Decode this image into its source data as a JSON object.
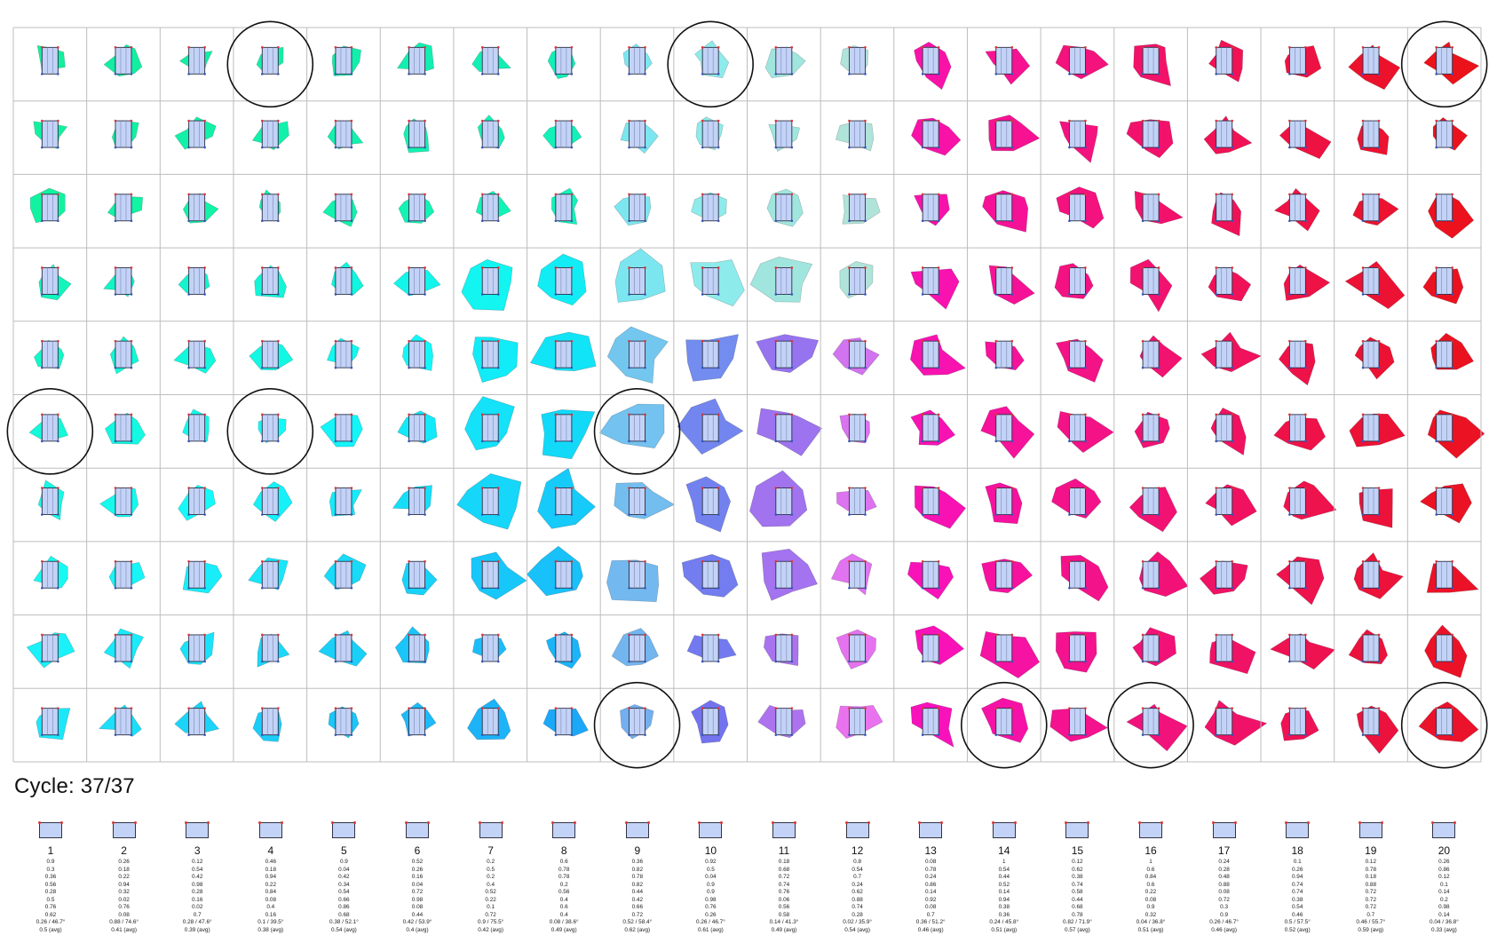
{
  "cycle": {
    "label": "Cycle: 37/37"
  },
  "grid": {
    "rows": 10,
    "cols": 20,
    "circled_cells": [
      [
        0,
        3
      ],
      [
        0,
        9
      ],
      [
        0,
        19
      ],
      [
        5,
        0
      ],
      [
        5,
        3
      ],
      [
        5,
        8
      ],
      [
        9,
        8
      ],
      [
        9,
        13
      ],
      [
        9,
        15
      ],
      [
        9,
        19
      ]
    ]
  },
  "legend": [
    {
      "index": "1",
      "values": [
        "0.9",
        "0.3",
        "0.36",
        "0.56",
        "0.28",
        "0.5",
        "0.76",
        "0.62",
        "0.26 / 46.7°",
        "0.5 (avg)"
      ]
    },
    {
      "index": "2",
      "values": [
        "0.26",
        "0.18",
        "0.22",
        "0.94",
        "0.32",
        "0.02",
        "0.76",
        "0.08",
        "0.88 / 74.6°",
        "0.41 (avg)"
      ]
    },
    {
      "index": "3",
      "values": [
        "0.12",
        "0.54",
        "0.42",
        "0.98",
        "0.28",
        "0.16",
        "0.02",
        "0.7",
        "0.28 / 47.6°",
        "0.39 (avg)"
      ]
    },
    {
      "index": "4",
      "values": [
        "0.46",
        "0.18",
        "0.94",
        "0.22",
        "0.84",
        "0.08",
        "0.4",
        "0.16",
        "0.1 / 39.5°",
        "0.38 (avg)"
      ]
    },
    {
      "index": "5",
      "values": [
        "0.9",
        "0.04",
        "0.42",
        "0.34",
        "0.54",
        "0.66",
        "0.86",
        "0.68",
        "0.38 / 52.1°",
        "0.54 (avg)"
      ]
    },
    {
      "index": "6",
      "values": [
        "0.52",
        "0.26",
        "0.16",
        "0.04",
        "0.72",
        "0.98",
        "0.08",
        "0.44",
        "0.42 / 53.9°",
        "0.4 (avg)"
      ]
    },
    {
      "index": "7",
      "values": [
        "0.2",
        "0.5",
        "0.2",
        "0.4",
        "0.52",
        "0.22",
        "0.1",
        "0.72",
        "0.9 / 75.5°",
        "0.42 (avg)"
      ]
    },
    {
      "index": "8",
      "values": [
        "0.6",
        "0.78",
        "0.78",
        "0.2",
        "0.56",
        "0.4",
        "0.6",
        "0.4",
        "0.08 / 38.6°",
        "0.49 (avg)"
      ]
    },
    {
      "index": "9",
      "values": [
        "0.36",
        "0.82",
        "0.78",
        "0.82",
        "0.44",
        "0.42",
        "0.66",
        "0.72",
        "0.52 / 58.4°",
        "0.62 (avg)"
      ]
    },
    {
      "index": "10",
      "values": [
        "0.92",
        "0.5",
        "0.04",
        "0.9",
        "0.9",
        "0.98",
        "0.76",
        "0.26",
        "0.26 / 46.7°",
        "0.61 (avg)"
      ]
    },
    {
      "index": "11",
      "values": [
        "0.18",
        "0.68",
        "0.72",
        "0.74",
        "0.76",
        "0.06",
        "0.56",
        "0.58",
        "0.14 / 41.3°",
        "0.49 (avg)"
      ]
    },
    {
      "index": "12",
      "values": [
        "0.8",
        "0.54",
        "0.7",
        "0.24",
        "0.62",
        "0.88",
        "0.74",
        "0.28",
        "0.02 / 35.9°",
        "0.54 (avg)"
      ]
    },
    {
      "index": "13",
      "values": [
        "0.08",
        "0.78",
        "0.24",
        "0.86",
        "0.14",
        "0.92",
        "0.08",
        "0.7",
        "0.36 / 51.2°",
        "0.46 (avg)"
      ]
    },
    {
      "index": "14",
      "values": [
        "1",
        "0.54",
        "0.44",
        "0.52",
        "0.14",
        "0.94",
        "0.38",
        "0.36",
        "0.24 / 45.8°",
        "0.51 (avg)"
      ]
    },
    {
      "index": "15",
      "values": [
        "0.12",
        "0.62",
        "0.38",
        "0.74",
        "0.58",
        "0.44",
        "0.68",
        "0.78",
        "0.82 / 71.9°",
        "0.57 (avg)"
      ]
    },
    {
      "index": "16",
      "values": [
        "1",
        "0.6",
        "0.84",
        "0.6",
        "0.22",
        "0.08",
        "0.9",
        "0.32",
        "0.04 / 36.8°",
        "0.51 (avg)"
      ]
    },
    {
      "index": "17",
      "values": [
        "0.24",
        "0.28",
        "0.48",
        "0.88",
        "0.08",
        "0.72",
        "0.3",
        "0.9",
        "0.26 / 46.7°",
        "0.46 (avg)"
      ]
    },
    {
      "index": "18",
      "values": [
        "0.1",
        "0.26",
        "0.94",
        "0.74",
        "0.74",
        "0.38",
        "0.54",
        "0.46",
        "0.5 / 57.5°",
        "0.52 (avg)"
      ]
    },
    {
      "index": "19",
      "values": [
        "0.12",
        "0.78",
        "0.18",
        "0.88",
        "0.72",
        "0.72",
        "0.72",
        "0.7",
        "0.46 / 55.7°",
        "0.59 (avg)"
      ]
    },
    {
      "index": "20",
      "values": [
        "0.26",
        "0.86",
        "0.12",
        "0.1",
        "0.14",
        "0.2",
        "0.98",
        "0.14",
        "0.04 / 36.8°",
        "0.33 (avg)"
      ]
    }
  ]
}
